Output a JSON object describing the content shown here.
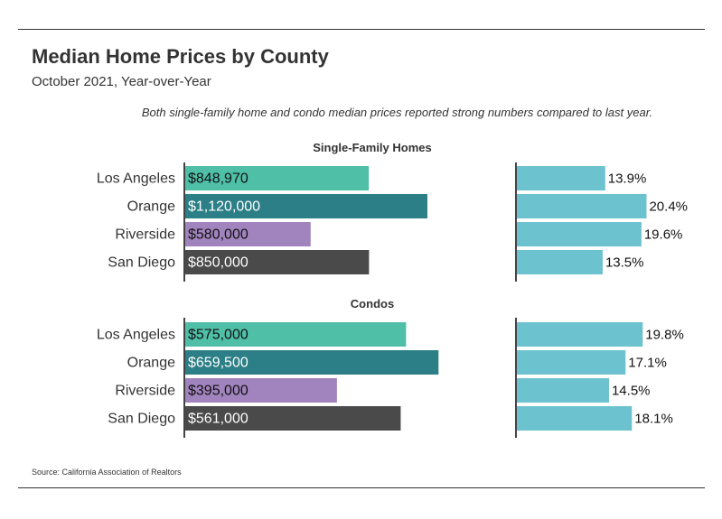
{
  "title": "Median Home Prices by County",
  "subtitle": "October 2021, Year-over-Year",
  "annotation": "Both single-family home and condo median prices reported strong numbers compared to last year.",
  "source": "Source:  California Association of Realtors",
  "colors": {
    "Los Angeles": "#4fbfa8",
    "Orange": "#2c7f86",
    "Riverside": "#a183bd",
    "San Diego": "#4a4a4a",
    "change": "#6cc2ce"
  },
  "chart_data": [
    {
      "type": "bar",
      "group": "Single-Family Homes",
      "categories": [
        "Los Angeles",
        "Orange",
        "Riverside",
        "San Diego"
      ],
      "series": [
        {
          "values": [
            848970,
            1120000,
            580000,
            850000
          ],
          "labels": [
            "$848,970",
            "$1,120,000",
            "$580,000",
            "$850,000"
          ]
        }
      ],
      "ylim": [
        0,
        1350000
      ]
    },
    {
      "type": "bar",
      "group": "Single-Family Homes",
      "categories": [
        "Los Angeles",
        "Orange",
        "Riverside",
        "San Diego"
      ],
      "series": [
        {
          "values": [
            13.9,
            20.4,
            19.6,
            13.5
          ],
          "labels": [
            "13.9%",
            "20.4%",
            "19.6%",
            "13.5%"
          ]
        }
      ],
      "ylim": [
        0,
        30
      ]
    },
    {
      "type": "bar",
      "group": "Condos",
      "categories": [
        "Los Angeles",
        "Orange",
        "Riverside",
        "San Diego"
      ],
      "series": [
        {
          "values": [
            575000,
            659500,
            395000,
            561000
          ],
          "labels": [
            "$575,000",
            "$659,500",
            "$395,000",
            "$561,000"
          ]
        }
      ],
      "ylim": [
        0,
        760000
      ]
    },
    {
      "type": "bar",
      "group": "Condos",
      "categories": [
        "Los Angeles",
        "Orange",
        "Riverside",
        "San Diego"
      ],
      "series": [
        {
          "values": [
            19.8,
            17.1,
            14.5,
            18.1
          ],
          "labels": [
            "19.8%",
            "17.1%",
            "14.5%",
            "18.1%"
          ]
        }
      ],
      "ylim": [
        0,
        30
      ]
    }
  ]
}
